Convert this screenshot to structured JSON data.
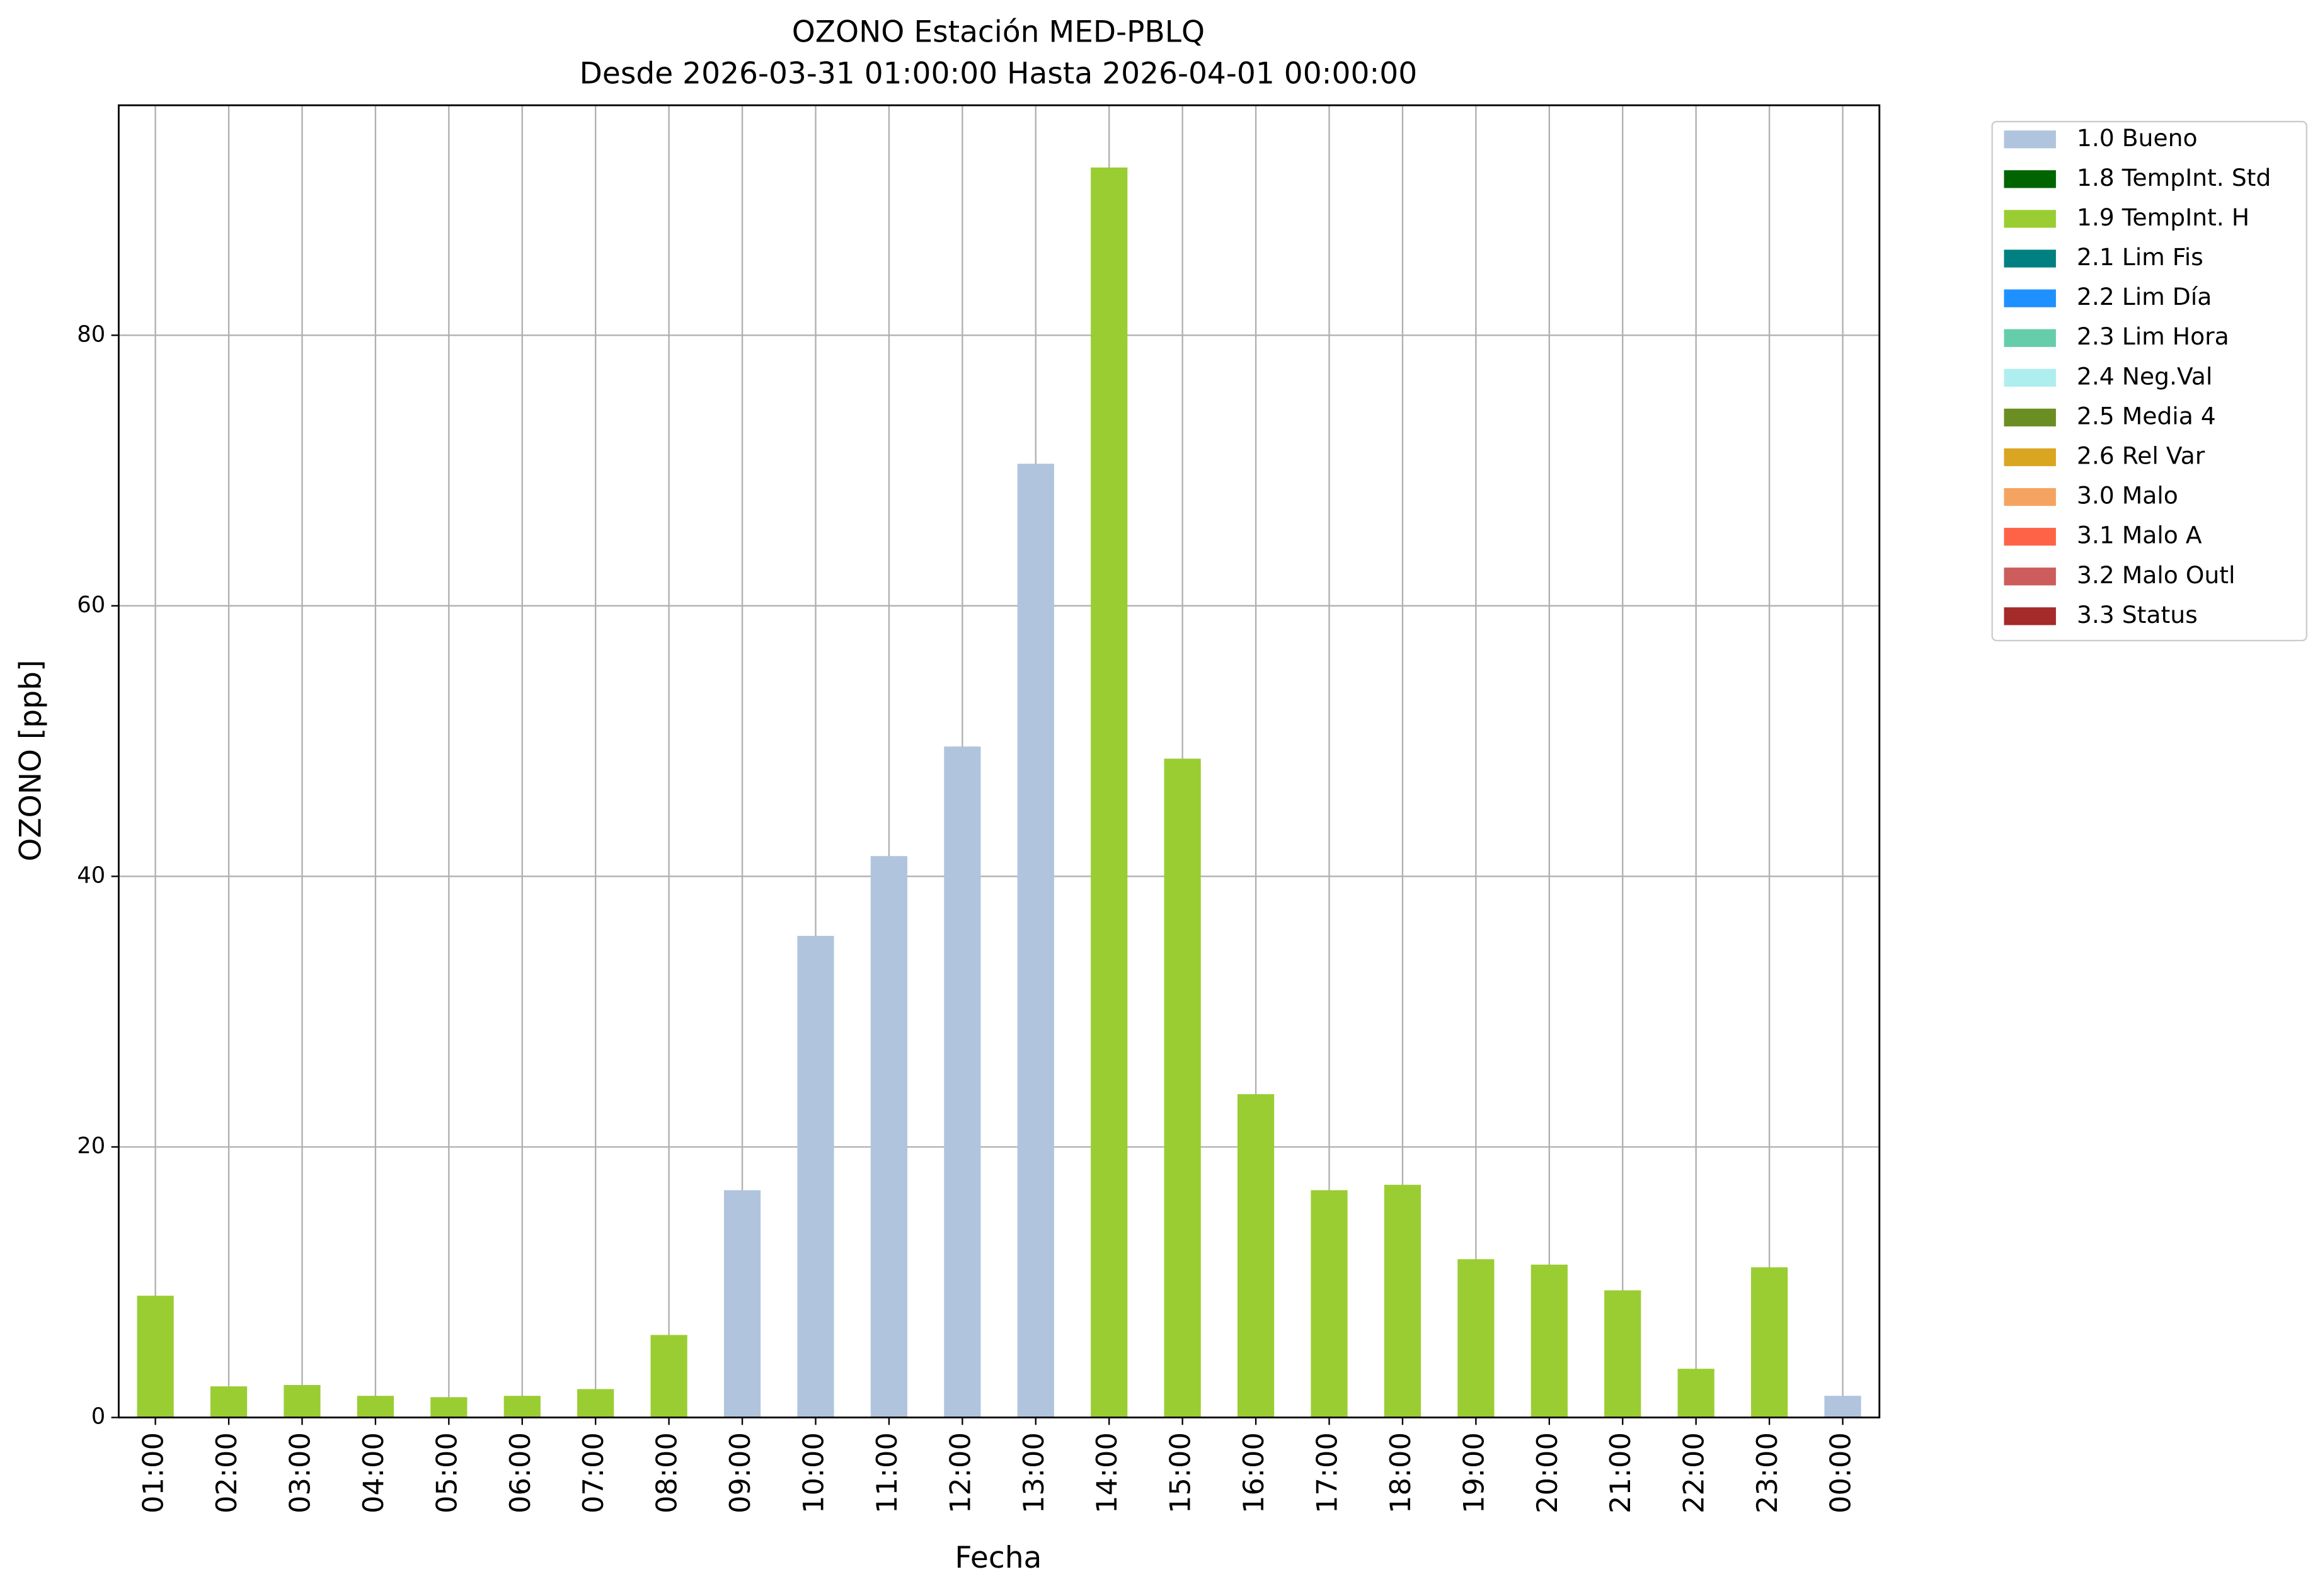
{
  "chart_data": {
    "type": "bar",
    "stacked": true,
    "title": "OZONO Estación MED-PBLQ",
    "subtitle": "Desde 2026-03-31 01:00:00 Hasta 2026-04-01 00:00:00",
    "x_label": "Fecha",
    "y_label": "OZONO [ppb]",
    "categories": [
      "01:00",
      "02:00",
      "03:00",
      "04:00",
      "05:00",
      "06:00",
      "07:00",
      "08:00",
      "09:00",
      "10:00",
      "11:00",
      "12:00",
      "13:00",
      "14:00",
      "15:00",
      "16:00",
      "17:00",
      "18:00",
      "19:00",
      "20:00",
      "21:00",
      "22:00",
      "23:00",
      "00:00"
    ],
    "ylim": [
      0,
      97
    ],
    "yticks": [
      0,
      20,
      40,
      60,
      80
    ],
    "grid": true,
    "legend": "outside-upper-right",
    "series": [
      {
        "name": "1.0 Bueno",
        "color": "#b0c4de",
        "values": [
          null,
          null,
          null,
          null,
          null,
          null,
          null,
          null,
          16.8,
          35.6,
          41.5,
          49.6,
          70.5,
          null,
          null,
          null,
          null,
          null,
          null,
          null,
          null,
          null,
          null,
          1.6
        ]
      },
      {
        "name": "1.8 TempInt. Std",
        "color": "#006400",
        "values": [
          null,
          null,
          null,
          null,
          null,
          null,
          null,
          null,
          null,
          null,
          null,
          null,
          null,
          null,
          null,
          null,
          null,
          null,
          null,
          null,
          null,
          null,
          null,
          null
        ]
      },
      {
        "name": "1.9 TempInt. H",
        "color": "#9acd32",
        "values": [
          9.0,
          2.3,
          2.4,
          1.6,
          1.5,
          1.6,
          2.1,
          6.1,
          null,
          null,
          null,
          null,
          null,
          92.4,
          48.7,
          23.9,
          16.8,
          17.2,
          11.7,
          11.3,
          9.4,
          3.6,
          11.1,
          null
        ]
      },
      {
        "name": "2.1 Lim Fis",
        "color": "#008080",
        "values": [
          null,
          null,
          null,
          null,
          null,
          null,
          null,
          null,
          null,
          null,
          null,
          null,
          null,
          null,
          null,
          null,
          null,
          null,
          null,
          null,
          null,
          null,
          null,
          null
        ]
      },
      {
        "name": "2.2 Lim Día",
        "color": "#1e90ff",
        "values": [
          null,
          null,
          null,
          null,
          null,
          null,
          null,
          null,
          null,
          null,
          null,
          null,
          null,
          null,
          null,
          null,
          null,
          null,
          null,
          null,
          null,
          null,
          null,
          null
        ]
      },
      {
        "name": "2.3 Lim Hora",
        "color": "#66cdaa",
        "values": [
          null,
          null,
          null,
          null,
          null,
          null,
          null,
          null,
          null,
          null,
          null,
          null,
          null,
          null,
          null,
          null,
          null,
          null,
          null,
          null,
          null,
          null,
          null,
          null
        ]
      },
      {
        "name": "2.4 Neg.Val",
        "color": "#afeeee",
        "values": [
          null,
          null,
          null,
          null,
          null,
          null,
          null,
          null,
          null,
          null,
          null,
          null,
          null,
          null,
          null,
          null,
          null,
          null,
          null,
          null,
          null,
          null,
          null,
          null
        ]
      },
      {
        "name": "2.5 Media 4",
        "color": "#6b8e23",
        "values": [
          null,
          null,
          null,
          null,
          null,
          null,
          null,
          null,
          null,
          null,
          null,
          null,
          null,
          null,
          null,
          null,
          null,
          null,
          null,
          null,
          null,
          null,
          null,
          null
        ]
      },
      {
        "name": "2.6 Rel Var",
        "color": "#daa520",
        "values": [
          null,
          null,
          null,
          null,
          null,
          null,
          null,
          null,
          null,
          null,
          null,
          null,
          null,
          null,
          null,
          null,
          null,
          null,
          null,
          null,
          null,
          null,
          null,
          null
        ]
      },
      {
        "name": "3.0 Malo",
        "color": "#f4a460",
        "values": [
          null,
          null,
          null,
          null,
          null,
          null,
          null,
          null,
          null,
          null,
          null,
          null,
          null,
          null,
          null,
          null,
          null,
          null,
          null,
          null,
          null,
          null,
          null,
          null
        ]
      },
      {
        "name": "3.1 Malo A",
        "color": "#ff6347",
        "values": [
          null,
          null,
          null,
          null,
          null,
          null,
          null,
          null,
          null,
          null,
          null,
          null,
          null,
          null,
          null,
          null,
          null,
          null,
          null,
          null,
          null,
          null,
          null,
          null
        ]
      },
      {
        "name": "3.2 Malo Outl",
        "color": "#cd5c5c",
        "values": [
          null,
          null,
          null,
          null,
          null,
          null,
          null,
          null,
          null,
          null,
          null,
          null,
          null,
          null,
          null,
          null,
          null,
          null,
          null,
          null,
          null,
          null,
          null,
          null
        ]
      },
      {
        "name": "3.3 Status",
        "color": "#a52a2a",
        "values": [
          null,
          null,
          null,
          null,
          null,
          null,
          null,
          null,
          null,
          null,
          null,
          null,
          null,
          null,
          null,
          null,
          null,
          null,
          null,
          null,
          null,
          null,
          null,
          null
        ]
      }
    ]
  }
}
